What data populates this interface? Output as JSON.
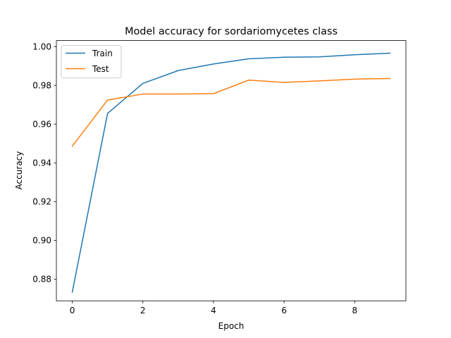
{
  "chart_data": {
    "type": "line",
    "title": "Model accuracy for sordariomycetes class",
    "xlabel": "Epoch",
    "ylabel": "Accuracy",
    "xlim": [
      -0.45,
      9.45
    ],
    "ylim": [
      0.8688,
      1.0031
    ],
    "xticks": [
      0,
      2,
      4,
      6,
      8
    ],
    "xtick_labels": [
      "0",
      "2",
      "4",
      "6",
      "8"
    ],
    "yticks": [
      0.88,
      0.9,
      0.92,
      0.94,
      0.96,
      0.98,
      1.0
    ],
    "ytick_labels": [
      "0.88",
      "0.90",
      "0.92",
      "0.94",
      "0.96",
      "0.98",
      "1.00"
    ],
    "grid": false,
    "legend_position": "top-left",
    "x": [
      0,
      1,
      2,
      3,
      4,
      5,
      6,
      7,
      8,
      9
    ],
    "series": [
      {
        "name": "Train",
        "color": "#1f77b4",
        "values": [
          0.8733,
          0.9655,
          0.981,
          0.9876,
          0.991,
          0.9937,
          0.9945,
          0.9947,
          0.9958,
          0.9966
        ]
      },
      {
        "name": "Test",
        "color": "#ff7f0e",
        "values": [
          0.9486,
          0.9724,
          0.9755,
          0.9755,
          0.9757,
          0.9827,
          0.9815,
          0.9823,
          0.9832,
          0.9835
        ]
      }
    ]
  }
}
